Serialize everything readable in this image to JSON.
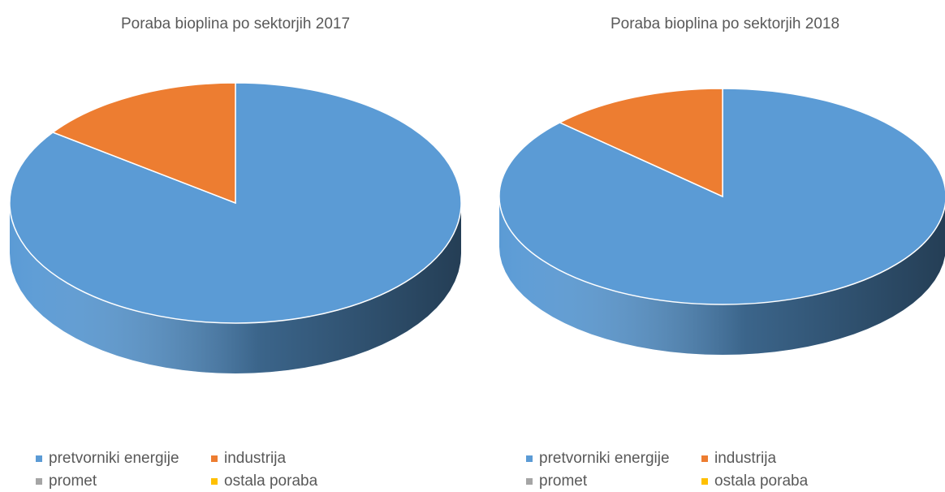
{
  "chart_data": [
    {
      "type": "pie",
      "title": "Poraba bioplina po sektorjih 2017",
      "categories": [
        "pretvorniki energije",
        "industrija",
        "promet",
        "ostala poraba"
      ],
      "values": [
        85,
        15,
        0,
        0
      ],
      "colors": [
        "#5b9bd5",
        "#ed7d31",
        "#a5a5a5",
        "#ffc000"
      ]
    },
    {
      "type": "pie",
      "title": "Poraba bioplina po sektorjih 2018",
      "categories": [
        "pretvorniki energije",
        "industrija",
        "promet",
        "ostala poraba"
      ],
      "values": [
        87,
        13,
        0,
        0
      ],
      "colors": [
        "#5b9bd5",
        "#ed7d31",
        "#a5a5a5",
        "#ffc000"
      ]
    }
  ]
}
